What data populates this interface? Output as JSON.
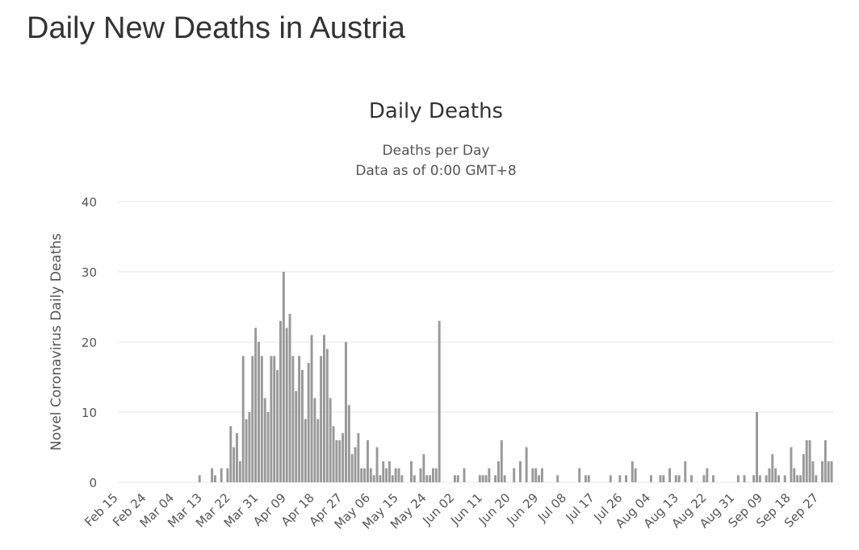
{
  "header": {
    "title": "Daily New Deaths in Austria"
  },
  "chart_data": {
    "type": "bar",
    "title": "Daily Deaths",
    "subtitle": [
      "Deaths per Day",
      "Data as of 0:00 GMT+8"
    ],
    "y_label": "Novel Coronavirus Daily Deaths",
    "color": "#999999",
    "grid": true,
    "ylim": [
      0,
      40
    ],
    "yticks": [
      0,
      10,
      20,
      30,
      40
    ],
    "categories": [
      "Feb 15",
      null,
      null,
      null,
      null,
      null,
      null,
      null,
      null,
      "Feb 24",
      null,
      null,
      null,
      null,
      null,
      null,
      null,
      null,
      "Mar 04",
      null,
      null,
      null,
      null,
      null,
      null,
      null,
      null,
      "Mar 13",
      null,
      null,
      null,
      null,
      null,
      null,
      null,
      null,
      "Mar 22",
      null,
      null,
      null,
      null,
      null,
      null,
      null,
      null,
      "Mar 31",
      null,
      null,
      null,
      null,
      null,
      null,
      null,
      null,
      "Apr 09",
      null,
      null,
      null,
      null,
      null,
      null,
      null,
      null,
      "Apr 18",
      null,
      null,
      null,
      null,
      null,
      null,
      null,
      null,
      "Apr 27",
      null,
      null,
      null,
      null,
      null,
      null,
      null,
      null,
      "May 06",
      null,
      null,
      null,
      null,
      null,
      null,
      null,
      null,
      "May 15",
      null,
      null,
      null,
      null,
      null,
      null,
      null,
      null,
      "May 24",
      null,
      null,
      null,
      null,
      null,
      null,
      null,
      null,
      "Jun 02",
      null,
      null,
      null,
      null,
      null,
      null,
      null,
      null,
      "Jun 11",
      null,
      null,
      null,
      null,
      null,
      null,
      null,
      null,
      "Jun 20",
      null,
      null,
      null,
      null,
      null,
      null,
      null,
      null,
      "Jun 29",
      null,
      null,
      null,
      null,
      null,
      null,
      null,
      null,
      "Jul 08",
      null,
      null,
      null,
      null,
      null,
      null,
      null,
      null,
      "Jul 17",
      null,
      null,
      null,
      null,
      null,
      null,
      null,
      null,
      "Jul 26",
      null,
      null,
      null,
      null,
      null,
      null,
      null,
      null,
      "Aug 04",
      null,
      null,
      null,
      null,
      null,
      null,
      null,
      null,
      "Aug 13",
      null,
      null,
      null,
      null,
      null,
      null,
      null,
      null,
      "Aug 22",
      null,
      null,
      null,
      null,
      null,
      null,
      null,
      null,
      "Aug 31",
      null,
      null,
      null,
      null,
      null,
      null,
      null,
      null,
      "Sep 09",
      null,
      null,
      null,
      null,
      null,
      null,
      null,
      null,
      "Sep 18",
      null,
      null,
      null,
      null,
      null,
      null,
      null,
      null,
      "Sep 27",
      null,
      null,
      null,
      null
    ],
    "values": [
      0,
      0,
      0,
      0,
      0,
      0,
      0,
      0,
      0,
      0,
      0,
      0,
      0,
      0,
      0,
      0,
      0,
      0,
      0,
      0,
      0,
      0,
      0,
      0,
      0,
      0,
      1,
      0,
      0,
      0,
      2,
      1,
      0,
      2,
      0,
      2,
      8,
      5,
      7,
      3,
      18,
      9,
      10,
      18,
      22,
      20,
      18,
      12,
      10,
      18,
      18,
      16,
      23,
      30,
      22,
      24,
      18,
      13,
      18,
      16,
      9,
      17,
      21,
      12,
      9,
      18,
      21,
      19,
      12,
      8,
      6,
      6,
      7,
      20,
      11,
      4,
      5,
      7,
      2,
      2,
      6,
      2,
      1,
      5,
      1,
      3,
      2,
      3,
      1,
      2,
      2,
      1,
      0,
      0,
      3,
      1,
      0,
      2,
      4,
      1,
      1,
      2,
      2,
      23,
      0,
      0,
      0,
      0,
      1,
      1,
      0,
      2,
      0,
      0,
      0,
      0,
      1,
      1,
      1,
      2,
      0,
      1,
      3,
      6,
      1,
      0,
      0,
      2,
      0,
      3,
      0,
      5,
      0,
      2,
      2,
      1,
      2,
      0,
      0,
      0,
      0,
      1,
      0,
      0,
      0,
      0,
      0,
      0,
      2,
      0,
      1,
      1,
      0,
      0,
      0,
      0,
      0,
      0,
      1,
      0,
      0,
      1,
      0,
      1,
      0,
      3,
      2,
      0,
      0,
      0,
      0,
      1,
      0,
      0,
      1,
      1,
      0,
      2,
      0,
      1,
      1,
      0,
      3,
      0,
      1,
      0,
      0,
      0,
      1,
      2,
      0,
      1,
      0,
      0,
      0,
      0,
      0,
      0,
      0,
      1,
      0,
      1,
      0,
      0,
      1,
      10,
      1,
      0,
      1,
      2,
      4,
      2,
      1,
      0,
      1,
      0,
      5,
      2,
      1,
      1,
      4,
      6,
      6,
      3,
      1,
      0,
      3,
      6,
      3,
      3
    ]
  }
}
